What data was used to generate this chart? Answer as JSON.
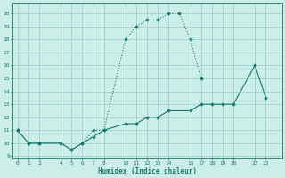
{
  "title": "",
  "xlabel": "Humidex (Indice chaleur)",
  "bg_color": "#cceee8",
  "line_color": "#1a7a6e",
  "grid_color": "#99cccc",
  "xticks": [
    0,
    1,
    2,
    4,
    5,
    6,
    7,
    8,
    10,
    11,
    12,
    13,
    14,
    16,
    17,
    18,
    19,
    20,
    22,
    23
  ],
  "yticks": [
    9,
    10,
    11,
    12,
    13,
    14,
    15,
    16,
    17,
    18,
    19,
    20
  ],
  "ylim": [
    8.8,
    20.8
  ],
  "xlim": [
    -0.5,
    24.5
  ],
  "line1_x": [
    0,
    1,
    2,
    4,
    5,
    6,
    7,
    8,
    10,
    11,
    12,
    13,
    14,
    15,
    16,
    17
  ],
  "line1_y": [
    11,
    10,
    10,
    10,
    9.5,
    10,
    11,
    11,
    18,
    19,
    19.5,
    19.5,
    20,
    20,
    18,
    15
  ],
  "line2_x": [
    0,
    1,
    2,
    4,
    5,
    6,
    7,
    8,
    10,
    11,
    12,
    13,
    14,
    16,
    17,
    18,
    19,
    20,
    22,
    23
  ],
  "line2_y": [
    11,
    10,
    10,
    10,
    9.5,
    10,
    10.5,
    11,
    11.5,
    11.5,
    12,
    12,
    12.5,
    12.5,
    13,
    13,
    13,
    13,
    16,
    13.5
  ],
  "figsize": [
    3.2,
    2.0
  ],
  "dpi": 100
}
